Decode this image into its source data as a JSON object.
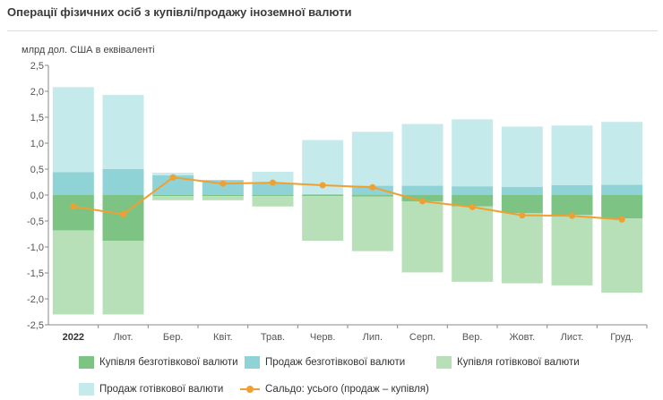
{
  "title": "Операції фізичних осіб з купівлі/продажу іноземної валюти",
  "chart_data": {
    "type": "bar",
    "subtype": "stacked-bar-with-line",
    "title": "Операції фізичних осіб з купівлі/продажу іноземної валюти",
    "ylabel": "млрд дол. США в еквіваленті",
    "ylim": [
      -2.5,
      2.5
    ],
    "yticks": [
      "2,5",
      "2,0",
      "1,5",
      "1,0",
      "0,5",
      "0,0",
      "-0,5",
      "-1,0",
      "-1,5",
      "-2,0",
      "-2,5"
    ],
    "ytick_values": [
      2.5,
      2.0,
      1.5,
      1.0,
      0.5,
      0.0,
      -0.5,
      -1.0,
      -1.5,
      -2.0,
      -2.5
    ],
    "categories": [
      "2022",
      "Лют.",
      "Бер.",
      "Квіт.",
      "Трав.",
      "Черв.",
      "Лип.",
      "Серп.",
      "Вер.",
      "Жовт.",
      "Лист.",
      "Груд."
    ],
    "grid": false,
    "legend_position": "bottom",
    "series": [
      {
        "name": "Купівля безготівкової валюти",
        "color": "#7dc383",
        "values": [
          -0.68,
          -0.88,
          -0.02,
          -0.02,
          -0.02,
          -0.02,
          -0.03,
          -0.12,
          -0.22,
          -0.35,
          -0.38,
          -0.45
        ]
      },
      {
        "name": "Продаж безготівкової валюти",
        "color": "#8fd3d6",
        "values": [
          0.44,
          0.5,
          0.38,
          0.29,
          0.23,
          0.02,
          0.18,
          0.18,
          0.17,
          0.16,
          0.19,
          0.2
        ]
      },
      {
        "name": "Купівля готівкової валюти",
        "color": "#b8e0b8",
        "values": [
          -1.62,
          -1.42,
          -0.08,
          -0.08,
          -0.2,
          -0.86,
          -1.05,
          -1.37,
          -1.45,
          -1.35,
          -1.36,
          -1.43
        ]
      },
      {
        "name": "Продаж готівкової валюти",
        "color": "#c5eaec",
        "values": [
          1.64,
          1.43,
          0.05,
          0.0,
          0.22,
          1.04,
          1.04,
          1.19,
          1.29,
          1.16,
          1.15,
          1.21
        ]
      },
      {
        "name": "Сальдо: усього (продаж – купівля)",
        "type": "line",
        "color": "#f0a030",
        "values": [
          -0.22,
          -0.37,
          0.34,
          0.22,
          0.24,
          0.19,
          0.15,
          -0.12,
          -0.23,
          -0.39,
          -0.4,
          -0.47
        ]
      }
    ]
  }
}
